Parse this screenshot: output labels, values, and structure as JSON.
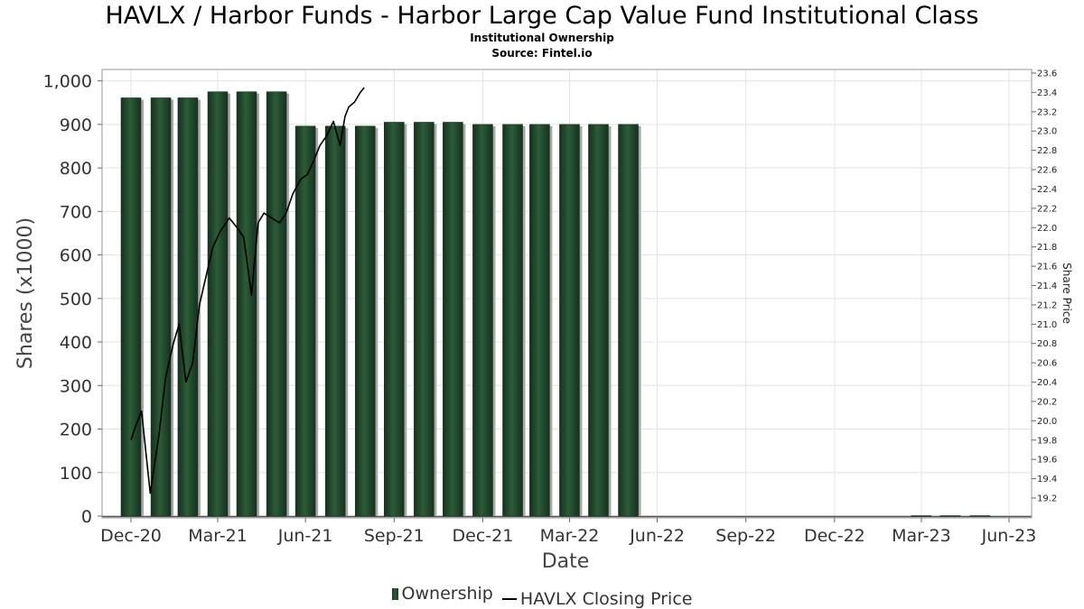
{
  "chart_data": {
    "type": "bar",
    "title": "HAVLX / Harbor Funds - Harbor Large Cap Value Fund Institutional Class",
    "subtitle": [
      "Institutional Ownership",
      "Source: Fintel.io"
    ],
    "xlabel": "Date",
    "ylabel": "Shares (x1000)",
    "y2label": "Share Price",
    "x_tick_labels": [
      "Dec-20",
      "Mar-21",
      "Jun-21",
      "Sep-21",
      "Dec-21",
      "Mar-22",
      "Jun-22",
      "Sep-22",
      "Dec-22",
      "Mar-23",
      "Jun-23"
    ],
    "ylim": [
      0,
      1020
    ],
    "y_ticks": [
      0,
      100,
      200,
      300,
      400,
      500,
      600,
      700,
      800,
      900,
      1000
    ],
    "y_tick_labels": [
      "0",
      "100",
      "200",
      "300",
      "400",
      "500",
      "600",
      "700",
      "800",
      "900",
      "1,000"
    ],
    "y2lim": [
      19.0,
      23.65
    ],
    "y2_ticks": [
      19.2,
      19.4,
      19.6,
      19.8,
      20.0,
      20.2,
      20.4,
      20.6,
      20.8,
      21.0,
      21.2,
      21.4,
      21.6,
      21.8,
      22.0,
      22.2,
      22.4,
      22.6,
      22.8,
      23.0,
      23.2,
      23.4,
      23.6
    ],
    "y2_tick_labels": [
      "19.2",
      "19.4",
      "19.6",
      "19.8",
      "20.0",
      "20.2",
      "20.4",
      "20.6",
      "20.8",
      "21.0",
      "21.2",
      "21.4",
      "21.6",
      "21.8",
      "22.0",
      "22.2",
      "22.4",
      "22.6",
      "22.8",
      "23.0",
      "23.2",
      "23.4",
      "23.6"
    ],
    "grid": true,
    "legend_position": "bottom-center",
    "series": [
      {
        "name": "Ownership",
        "type": "bar",
        "axis": "left",
        "color": "#1f4a2a",
        "x": [
          "2020-12-31",
          "2021-01-31",
          "2021-02-28",
          "2021-03-31",
          "2021-04-30",
          "2021-05-31",
          "2021-06-30",
          "2021-07-31",
          "2021-08-31",
          "2021-09-30",
          "2021-10-31",
          "2021-11-30",
          "2021-12-31",
          "2022-01-31",
          "2022-02-28",
          "2022-03-31",
          "2022-04-30",
          "2022-05-31",
          "2023-03-31",
          "2023-04-30",
          "2023-05-31"
        ],
        "values": [
          961,
          961,
          961,
          975,
          975,
          975,
          896,
          896,
          896,
          905,
          905,
          905,
          900,
          900,
          900,
          900,
          900,
          900,
          1,
          1,
          1
        ]
      },
      {
        "name": "HAVLX Closing Price",
        "type": "line",
        "axis": "right",
        "color": "#000000",
        "x": [
          "2020-12-31",
          "2021-01-05",
          "2021-01-11",
          "2021-01-20",
          "2021-01-29",
          "2021-02-05",
          "2021-02-13",
          "2021-02-19",
          "2021-02-26",
          "2021-03-05",
          "2021-03-12",
          "2021-03-19",
          "2021-03-26",
          "2021-04-02",
          "2021-04-12",
          "2021-04-20",
          "2021-04-27",
          "2021-05-05",
          "2021-05-12",
          "2021-05-18",
          "2021-05-26",
          "2021-06-03",
          "2021-06-10",
          "2021-06-17",
          "2021-06-25",
          "2021-07-02",
          "2021-07-09",
          "2021-07-15",
          "2021-07-22",
          "2021-07-29",
          "2021-08-05",
          "2021-08-10",
          "2021-08-14",
          "2021-08-20",
          "2021-08-26",
          "2021-08-30"
        ],
        "values": [
          19.8,
          19.95,
          20.1,
          19.25,
          19.85,
          20.45,
          20.8,
          21.0,
          20.4,
          20.6,
          21.2,
          21.5,
          21.8,
          21.95,
          22.1,
          22.0,
          21.9,
          21.3,
          22.05,
          22.15,
          22.1,
          22.05,
          22.15,
          22.35,
          22.5,
          22.55,
          22.7,
          22.85,
          22.95,
          23.1,
          22.85,
          23.15,
          23.25,
          23.3,
          23.4,
          23.45
        ]
      }
    ]
  },
  "legend": {
    "ownership_label": "Ownership",
    "price_label": "HAVLX Closing Price"
  }
}
